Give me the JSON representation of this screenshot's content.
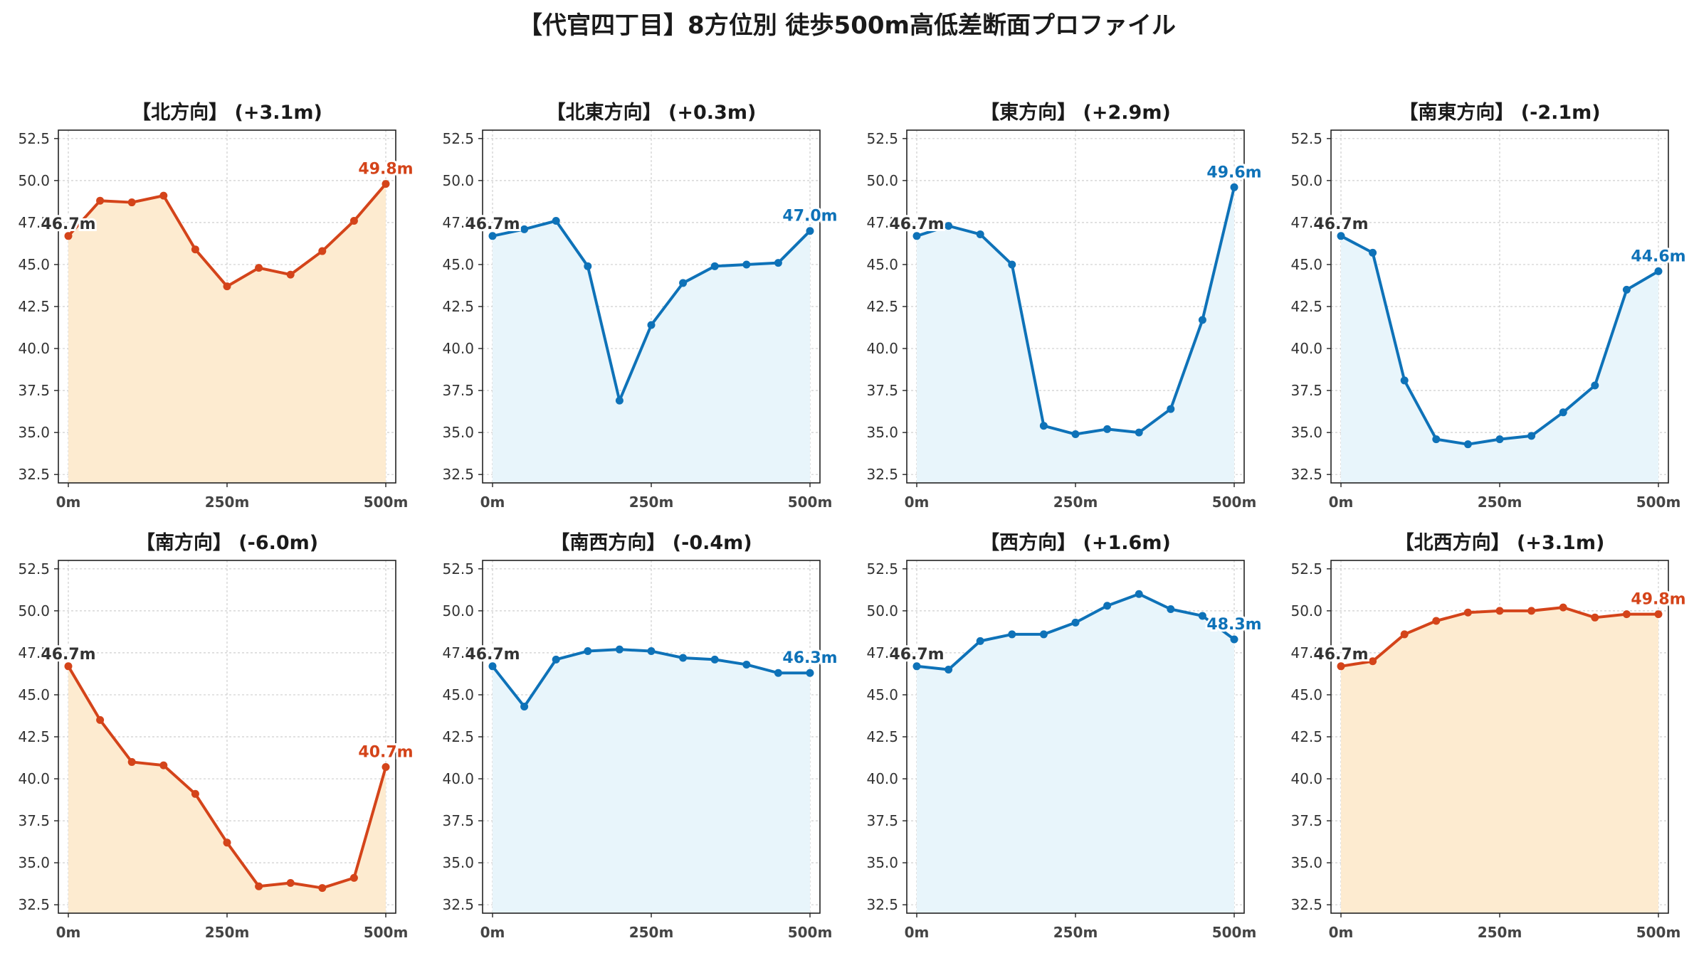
{
  "title": "【代官四丁目】8方位別 徒歩500m高低差断面プロファイル",
  "colors": {
    "up_line": "#d4441a",
    "up_fill": "#fdebd0",
    "down_line": "#0e72b8",
    "down_fill": "#e8f5fb",
    "start_label": "#333333"
  },
  "chart_data": [
    {
      "type": "area",
      "title": "【北方向】 (+3.1m)",
      "trend": "up",
      "x": [
        0,
        50,
        100,
        150,
        200,
        250,
        300,
        350,
        400,
        450,
        500
      ],
      "y": [
        46.7,
        48.8,
        48.7,
        49.1,
        45.9,
        43.7,
        44.8,
        44.4,
        45.8,
        47.6,
        49.8
      ],
      "start_label": "46.7m",
      "end_label": "49.8m",
      "xticks": [
        "0m",
        "250m",
        "500m"
      ],
      "yticks": [
        "32.5",
        "35.0",
        "37.5",
        "40.0",
        "42.5",
        "45.0",
        "47.5",
        "50.0",
        "52.5"
      ],
      "xlim": [
        0,
        500
      ],
      "ylim": [
        32,
        53
      ],
      "grid": true
    },
    {
      "type": "area",
      "title": "【北東方向】 (+0.3m)",
      "trend": "down",
      "x": [
        0,
        50,
        100,
        150,
        200,
        250,
        300,
        350,
        400,
        450,
        500
      ],
      "y": [
        46.7,
        47.1,
        47.6,
        44.9,
        36.9,
        41.4,
        43.9,
        44.9,
        45.0,
        45.1,
        47.0
      ],
      "start_label": "46.7m",
      "end_label": "47.0m",
      "xticks": [
        "0m",
        "250m",
        "500m"
      ],
      "yticks": [
        "32.5",
        "35.0",
        "37.5",
        "40.0",
        "42.5",
        "45.0",
        "47.5",
        "50.0",
        "52.5"
      ],
      "xlim": [
        0,
        500
      ],
      "ylim": [
        32,
        53
      ],
      "grid": true
    },
    {
      "type": "area",
      "title": "【東方向】 (+2.9m)",
      "trend": "down",
      "x": [
        0,
        50,
        100,
        150,
        200,
        250,
        300,
        350,
        400,
        450,
        500
      ],
      "y": [
        46.7,
        47.3,
        46.8,
        45.0,
        35.4,
        34.9,
        35.2,
        35.0,
        36.4,
        41.7,
        49.6
      ],
      "start_label": "46.7m",
      "end_label": "49.6m",
      "xticks": [
        "0m",
        "250m",
        "500m"
      ],
      "yticks": [
        "32.5",
        "35.0",
        "37.5",
        "40.0",
        "42.5",
        "45.0",
        "47.5",
        "50.0",
        "52.5"
      ],
      "xlim": [
        0,
        500
      ],
      "ylim": [
        32,
        53
      ],
      "grid": true
    },
    {
      "type": "area",
      "title": "【南東方向】 (-2.1m)",
      "trend": "down",
      "x": [
        0,
        50,
        100,
        150,
        200,
        250,
        300,
        350,
        400,
        450,
        500
      ],
      "y": [
        46.7,
        45.7,
        38.1,
        34.6,
        34.3,
        34.6,
        34.8,
        36.2,
        37.8,
        43.5,
        44.6
      ],
      "start_label": "46.7m",
      "end_label": "44.6m",
      "xticks": [
        "0m",
        "250m",
        "500m"
      ],
      "yticks": [
        "32.5",
        "35.0",
        "37.5",
        "40.0",
        "42.5",
        "45.0",
        "47.5",
        "50.0",
        "52.5"
      ],
      "xlim": [
        0,
        500
      ],
      "ylim": [
        32,
        53
      ],
      "grid": true
    },
    {
      "type": "area",
      "title": "【南方向】 (-6.0m)",
      "trend": "up",
      "x": [
        0,
        50,
        100,
        150,
        200,
        250,
        300,
        350,
        400,
        450,
        500
      ],
      "y": [
        46.7,
        43.5,
        41.0,
        40.8,
        39.1,
        36.2,
        33.6,
        33.8,
        33.5,
        34.1,
        40.7
      ],
      "start_label": "46.7m",
      "end_label": "40.7m",
      "xticks": [
        "0m",
        "250m",
        "500m"
      ],
      "yticks": [
        "32.5",
        "35.0",
        "37.5",
        "40.0",
        "42.5",
        "45.0",
        "47.5",
        "50.0",
        "52.5"
      ],
      "xlim": [
        0,
        500
      ],
      "ylim": [
        32,
        53
      ],
      "grid": true
    },
    {
      "type": "area",
      "title": "【南西方向】 (-0.4m)",
      "trend": "down",
      "x": [
        0,
        50,
        100,
        150,
        200,
        250,
        300,
        350,
        400,
        450,
        500
      ],
      "y": [
        46.7,
        44.3,
        47.1,
        47.6,
        47.7,
        47.6,
        47.2,
        47.1,
        46.8,
        46.3,
        46.3
      ],
      "start_label": "46.7m",
      "end_label": "46.3m",
      "xticks": [
        "0m",
        "250m",
        "500m"
      ],
      "yticks": [
        "32.5",
        "35.0",
        "37.5",
        "40.0",
        "42.5",
        "45.0",
        "47.5",
        "50.0",
        "52.5"
      ],
      "xlim": [
        0,
        500
      ],
      "ylim": [
        32,
        53
      ],
      "grid": true
    },
    {
      "type": "area",
      "title": "【西方向】 (+1.6m)",
      "trend": "down",
      "x": [
        0,
        50,
        100,
        150,
        200,
        250,
        300,
        350,
        400,
        450,
        500
      ],
      "y": [
        46.7,
        46.5,
        48.2,
        48.6,
        48.6,
        49.3,
        50.3,
        51.0,
        50.1,
        49.7,
        48.3
      ],
      "start_label": "46.7m",
      "end_label": "48.3m",
      "xticks": [
        "0m",
        "250m",
        "500m"
      ],
      "yticks": [
        "32.5",
        "35.0",
        "37.5",
        "40.0",
        "42.5",
        "45.0",
        "47.5",
        "50.0",
        "52.5"
      ],
      "xlim": [
        0,
        500
      ],
      "ylim": [
        32,
        53
      ],
      "grid": true
    },
    {
      "type": "area",
      "title": "【北西方向】 (+3.1m)",
      "trend": "up",
      "x": [
        0,
        50,
        100,
        150,
        200,
        250,
        300,
        350,
        400,
        450,
        500
      ],
      "y": [
        46.7,
        47.0,
        48.6,
        49.4,
        49.9,
        50.0,
        50.0,
        50.2,
        49.6,
        49.8,
        49.8
      ],
      "start_label": "46.7m",
      "end_label": "49.8m",
      "xticks": [
        "0m",
        "250m",
        "500m"
      ],
      "yticks": [
        "32.5",
        "35.0",
        "37.5",
        "40.0",
        "42.5",
        "45.0",
        "47.5",
        "50.0",
        "52.5"
      ],
      "xlim": [
        0,
        500
      ],
      "ylim": [
        32,
        53
      ],
      "grid": true
    }
  ]
}
